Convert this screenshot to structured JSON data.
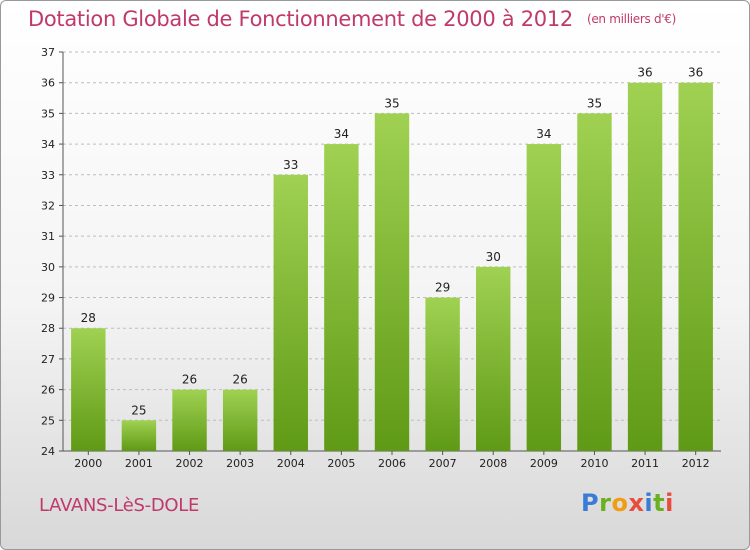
{
  "title": "Dotation Globale de Fonctionnement de 2000 à 2012",
  "unit_note": "(en milliers d'€)",
  "commune": "LAVANS-LèS-DOLE",
  "logo": [
    "P",
    "r",
    "o",
    "x",
    "i",
    "t",
    "i"
  ],
  "colors": {
    "bar_top": "#a0d152",
    "bar_bottom": "#5f9a16",
    "title": "#c0396b",
    "grid": "#bdbdbd"
  },
  "chart_data": {
    "type": "bar",
    "title": "Dotation Globale de Fonctionnement de 2000 à 2012",
    "categories": [
      "2000",
      "2001",
      "2002",
      "2003",
      "2004",
      "2005",
      "2006",
      "2007",
      "2008",
      "2009",
      "2010",
      "2011",
      "2012"
    ],
    "values": [
      28,
      25,
      26,
      26,
      33,
      34,
      35,
      29,
      30,
      34,
      35,
      36,
      36
    ],
    "ylim": [
      24,
      37
    ],
    "yticks": [
      24,
      25,
      26,
      27,
      28,
      29,
      30,
      31,
      32,
      33,
      34,
      35,
      36,
      37
    ],
    "grid": "horizontal-dashed"
  }
}
